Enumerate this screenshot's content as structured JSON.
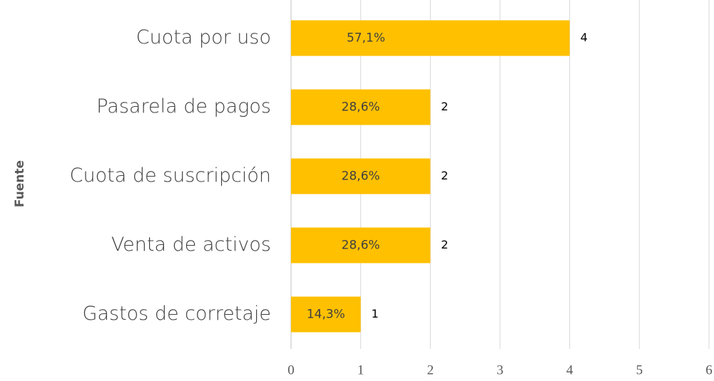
{
  "chart_data": {
    "type": "barh",
    "y_label": "Fuente",
    "categories": [
      "Cuota por uso",
      "Pasarela de pagos",
      "Cuota de suscripción",
      "Venta de activos",
      "Gastos de corretaje"
    ],
    "values": [
      4,
      2,
      2,
      2,
      1
    ],
    "percentage_labels": [
      "57,1%",
      "28,6%",
      "28,6%",
      "28,6%",
      "14,3%"
    ],
    "color": "#ffc000",
    "xlim": [
      0,
      6
    ],
    "xticks": [
      0,
      1,
      2,
      3,
      4,
      5,
      6
    ],
    "grid": true
  }
}
